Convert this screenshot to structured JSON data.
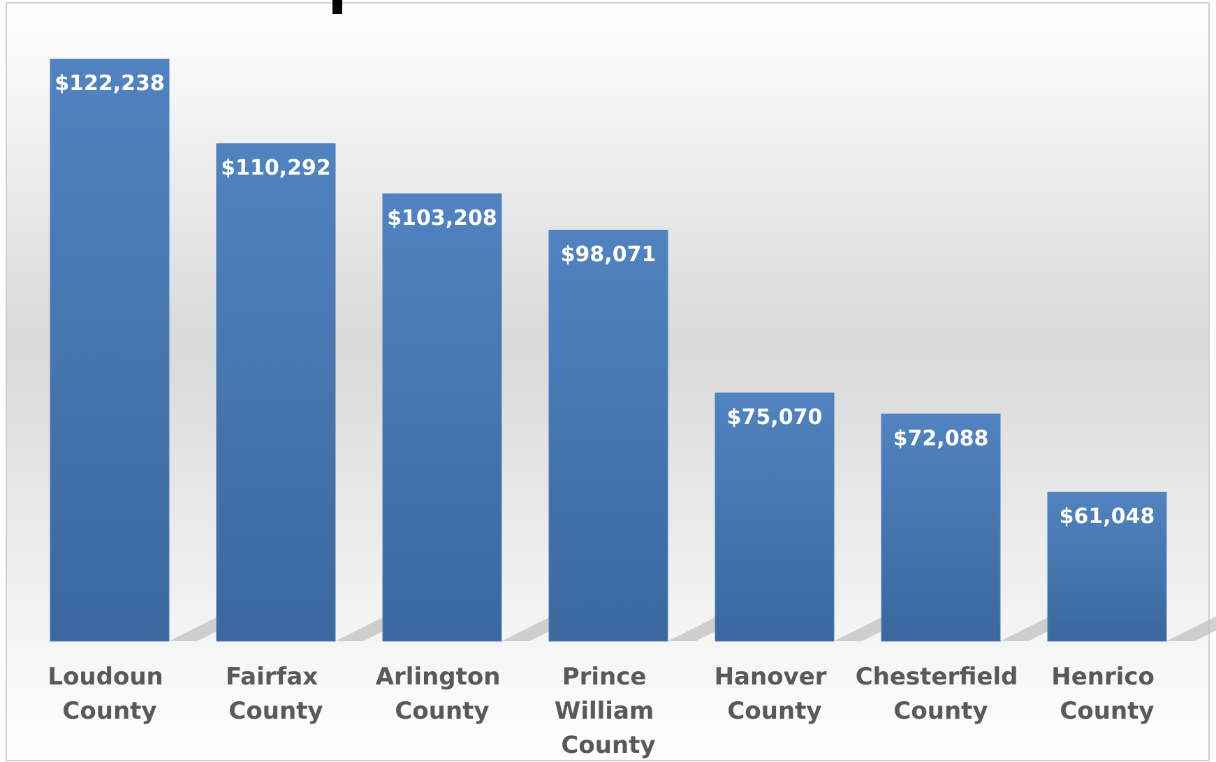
{
  "chart_data": {
    "type": "bar",
    "categories": [
      "Loudoun County",
      "Fairfax County",
      "Arlington County",
      "Prince William County",
      "Hanover County",
      "Chesterfield County",
      "Henrico County"
    ],
    "values": [
      122238,
      110292,
      103208,
      98071,
      75070,
      72088,
      61048
    ],
    "value_labels": [
      "$122,238",
      "$110,292",
      "$103,208",
      "$98,071",
      "$75,070",
      "$72,088",
      "$61,048"
    ],
    "color": "#4f81bd",
    "ylim": [
      40000,
      130000
    ]
  }
}
